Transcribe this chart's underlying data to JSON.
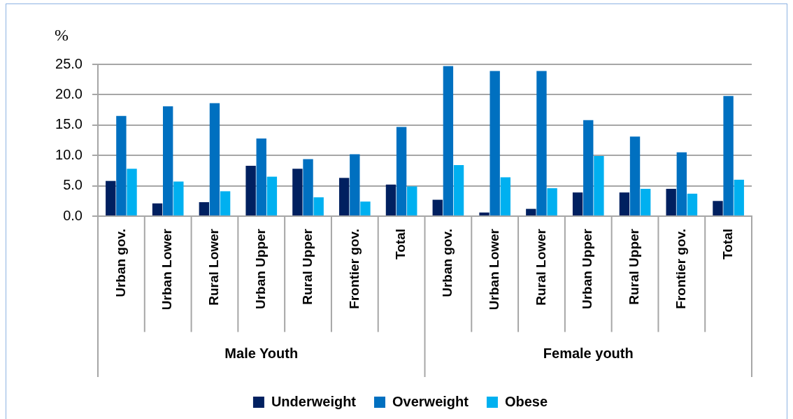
{
  "chart_data": {
    "type": "bar",
    "ylabel": "%",
    "categories": [
      "Urban gov.",
      "Urban Lower",
      "Rural Lower",
      "Urban Upper",
      "Rural Upper",
      "Frontier gov.",
      "Total",
      "Urban gov.",
      "Urban Lower",
      "Rural Lower",
      "Urban Upper",
      "Rural Upper",
      "Frontier gov.",
      "Total"
    ],
    "series": [
      {
        "name": "Underweight",
        "color": "#002060",
        "values": [
          5.8,
          2.1,
          2.3,
          8.3,
          7.8,
          6.3,
          5.2,
          2.7,
          0.6,
          1.2,
          3.9,
          3.9,
          4.5,
          2.5
        ]
      },
      {
        "name": "Overweight",
        "color": "#0070c0",
        "values": [
          16.5,
          18.1,
          18.6,
          12.8,
          9.4,
          10.2,
          14.7,
          24.7,
          23.9,
          23.9,
          15.8,
          13.1,
          10.5,
          19.8
        ]
      },
      {
        "name": "Obese",
        "color": "#00b0f0",
        "values": [
          7.8,
          5.7,
          4.1,
          6.5,
          3.1,
          2.4,
          4.9,
          8.4,
          6.4,
          4.6,
          9.9,
          4.5,
          3.7,
          6.0
        ]
      }
    ],
    "ylim": [
      0,
      25
    ],
    "yticks": [
      {
        "value": 0,
        "label": "0.0"
      },
      {
        "value": 5,
        "label": "5.0"
      },
      {
        "value": 10,
        "label": "10.0"
      },
      {
        "value": 15,
        "label": "15.0"
      },
      {
        "value": 20,
        "label": "20.0"
      },
      {
        "value": 25,
        "label": "25.0"
      }
    ],
    "grid": "y",
    "legend": "bottom",
    "annotations": [
      "Male Youth",
      "Female youth"
    ]
  }
}
